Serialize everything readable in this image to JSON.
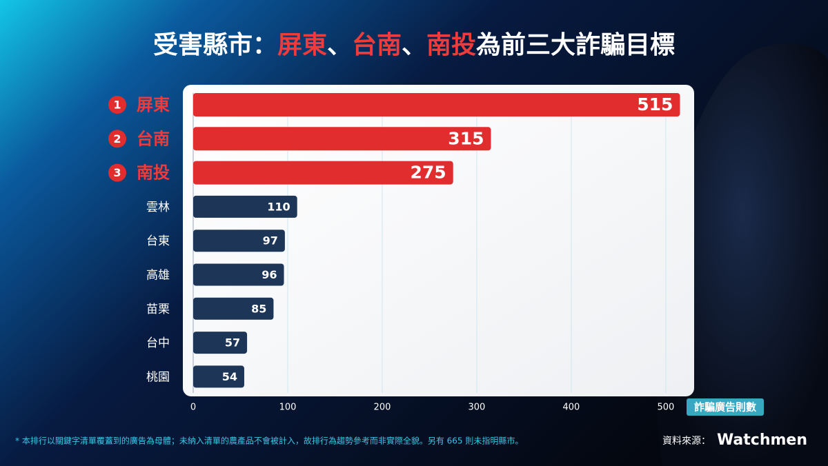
{
  "chart_data": {
    "type": "bar",
    "title_segments": [
      {
        "text": "受害縣市：",
        "color": "#ffffff"
      },
      {
        "text": "屏東",
        "color": "#ef3b3b"
      },
      {
        "text": "、",
        "color": "#ffffff"
      },
      {
        "text": "台南",
        "color": "#ef3b3b"
      },
      {
        "text": "、",
        "color": "#ffffff"
      },
      {
        "text": "南投",
        "color": "#ef3b3b"
      },
      {
        "text": "為前三大詐騙目標",
        "color": "#ffffff"
      }
    ],
    "categories": [
      "屏東",
      "台南",
      "南投",
      "雲林",
      "台東",
      "高雄",
      "苗栗",
      "台中",
      "桃園"
    ],
    "ranks": [
      1,
      2,
      3,
      null,
      null,
      null,
      null,
      null,
      null
    ],
    "values": [
      515,
      315,
      275,
      110,
      97,
      96,
      85,
      57,
      54
    ],
    "colors": [
      "#e22d2f",
      "#e22d2f",
      "#e22d2f",
      "#1d3557",
      "#1d3557",
      "#1d3557",
      "#1d3557",
      "#1d3557",
      "#1d3557"
    ],
    "xlim": [
      0,
      530
    ],
    "xticks": [
      0,
      100,
      200,
      300,
      400,
      500
    ],
    "grid": true,
    "x_label": "詐騙廣告則數",
    "footnote": "* 本排行以關鍵字清單覆蓋到的廣告為母體；未納入清單的農產品不會被計入，故排行為趨勢參考而非實際全貌。另有 665 則未指明縣市。",
    "source_label": "資料來源：",
    "source": "Watchmen"
  }
}
